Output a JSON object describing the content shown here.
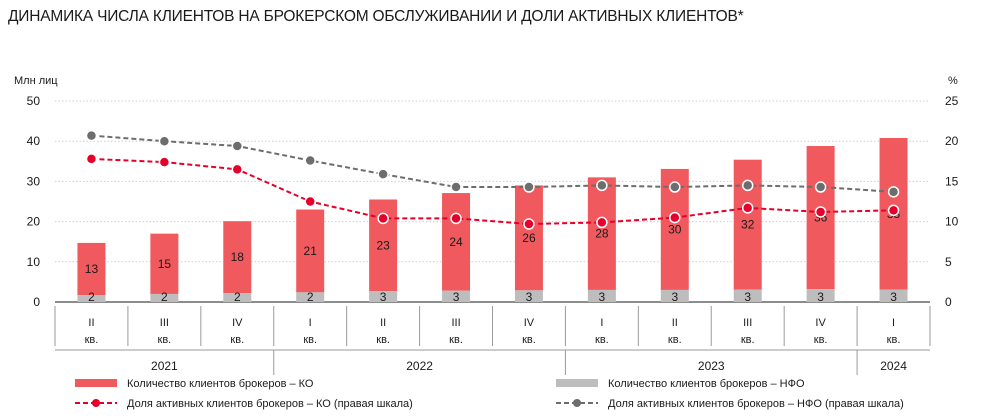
{
  "title": "ДИНАМИКА ЧИСЛА КЛИЕНТОВ НА БРОКЕРСКОМ ОБСЛУЖИВАНИИ И ДОЛИ АКТИВНЫХ КЛИЕНТОВ*",
  "colors": {
    "ko_bar": "#f05a5e",
    "nfo_bar": "#bdbdbd",
    "ko_line": "#e4002b",
    "nfo_line": "#6d6d6d"
  },
  "chart_data": {
    "type": "bar",
    "title": "ДИНАМИКА ЧИСЛА КЛИЕНТОВ НА БРОКЕРСКОМ ОБСЛУЖИВАНИИ И ДОЛИ АКТИВНЫХ КЛИЕНТОВ*",
    "ylabel_left": "Млн лиц",
    "ylabel_right": "%",
    "ylim_left": [
      0,
      50
    ],
    "ylim_right": [
      0,
      25
    ],
    "yticks_left": [
      "0",
      "10",
      "20",
      "30",
      "40",
      "50"
    ],
    "yticks_right": [
      "0",
      "5",
      "10",
      "15",
      "20",
      "25"
    ],
    "grid": true,
    "legend_position": "bottom",
    "quarters": [
      "II",
      "III",
      "IV",
      "I",
      "II",
      "III",
      "IV",
      "I",
      "II",
      "III",
      "IV",
      "I"
    ],
    "quarter_suffix": "кв.",
    "years": [
      {
        "label": "2021",
        "count": 3
      },
      {
        "label": "2022",
        "count": 4
      },
      {
        "label": "2023",
        "count": 4
      },
      {
        "label": "2024",
        "count": 1
      }
    ],
    "series": [
      {
        "name": "Количество клиентов брокеров – КО",
        "kind": "bar",
        "axis": "left",
        "values": [
          14.7,
          17.0,
          20.1,
          23.0,
          25.5,
          27.1,
          29.0,
          31.0,
          33.1,
          35.4,
          38.8,
          40.8
        ],
        "labels": [
          "13",
          "15",
          "18",
          "21",
          "23",
          "24",
          "26",
          "28",
          "30",
          "32",
          "36",
          "38"
        ]
      },
      {
        "name": "Количество клиентов брокеров – НФО",
        "kind": "bar",
        "axis": "left",
        "values": [
          1.7,
          2.0,
          2.2,
          2.4,
          2.7,
          2.8,
          2.9,
          3.0,
          3.0,
          3.1,
          3.2,
          3.1
        ],
        "labels": [
          "2",
          "2",
          "2",
          "2",
          "3",
          "3",
          "3",
          "3",
          "3",
          "3",
          "3",
          "3"
        ]
      },
      {
        "name": "Доля активных клиентов брокеров – КО (правая шкала)",
        "kind": "line",
        "axis": "right",
        "values": [
          17.8,
          17.4,
          16.5,
          12.5,
          10.4,
          10.4,
          9.7,
          9.9,
          10.5,
          11.7,
          11.2,
          11.4
        ]
      },
      {
        "name": "Доля активных клиентов брокеров – НФО (правая шкала)",
        "kind": "line",
        "axis": "right",
        "values": [
          20.7,
          20.0,
          19.4,
          17.6,
          15.9,
          14.3,
          14.3,
          14.5,
          14.3,
          14.5,
          14.3,
          13.7
        ]
      }
    ]
  }
}
